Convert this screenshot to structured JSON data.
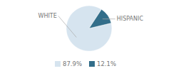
{
  "chart_data": {
    "type": "pie",
    "categories": [
      "WHITE",
      "HISPANIC"
    ],
    "values": [
      87.9,
      12.1
    ],
    "value_labels": [
      "87.9%",
      "12.1%"
    ],
    "colors": [
      "#d6e4ef",
      "#336e8a"
    ],
    "legend": "bottom"
  }
}
